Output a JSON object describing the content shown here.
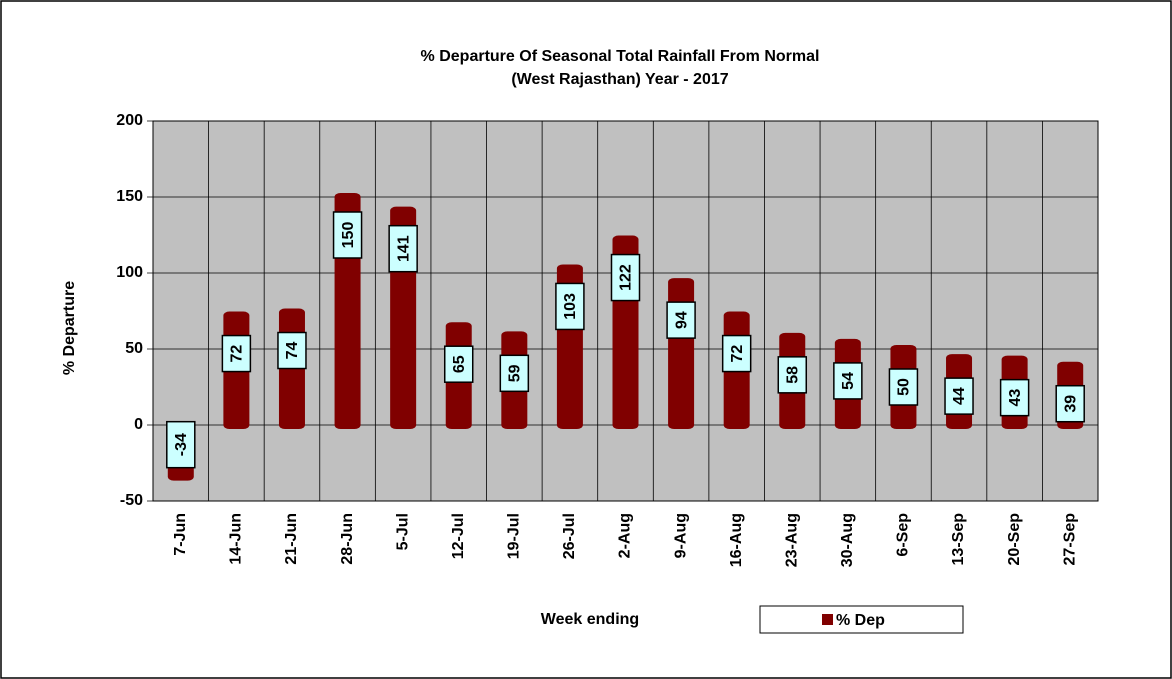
{
  "chart_data": {
    "type": "bar",
    "title": "% Departure Of Seasonal Total Rainfall From Normal",
    "subtitle": "(West Rajasthan) Year - 2017",
    "x_label": "Week ending",
    "y_label": "% Departure",
    "categories": [
      "7-Jun",
      "14-Jun",
      "21-Jun",
      "28-Jun",
      "5-Jul",
      "12-Jul",
      "19-Jul",
      "26-Jul",
      "2-Aug",
      "9-Aug",
      "16-Aug",
      "23-Aug",
      "30-Aug",
      "6-Sep",
      "13-Sep",
      "20-Sep",
      "27-Sep"
    ],
    "series": [
      {
        "name": "% Dep",
        "color": "#800000",
        "values": [
          -34,
          72,
          74,
          150,
          141,
          65,
          59,
          103,
          122,
          94,
          72,
          58,
          54,
          50,
          44,
          43,
          39
        ]
      }
    ],
    "ylim": [
      -50,
      200
    ],
    "yticks": [
      -50,
      0,
      50,
      100,
      150,
      200
    ],
    "grid": true,
    "legend": "bottom"
  }
}
